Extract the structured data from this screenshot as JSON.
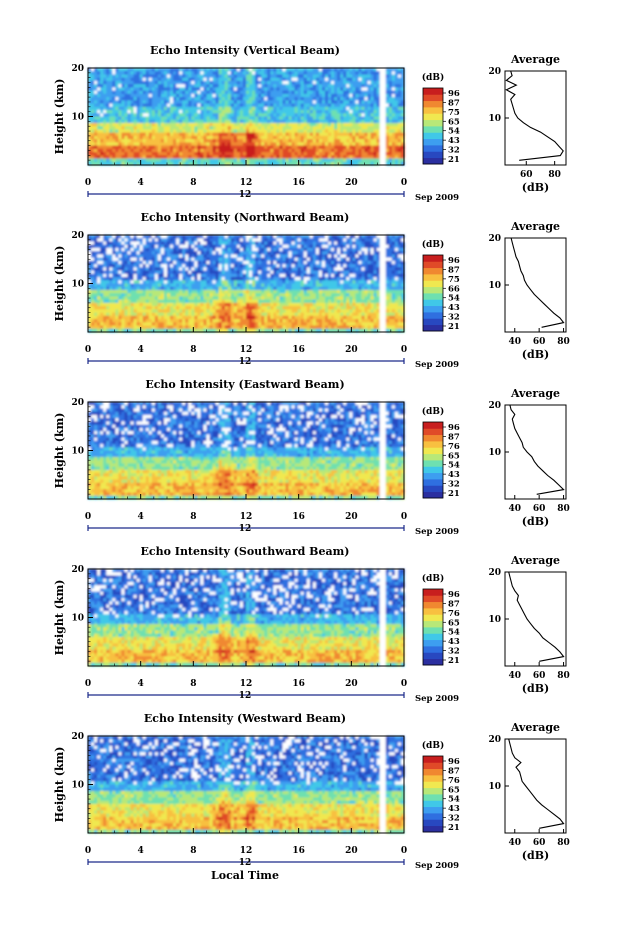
{
  "x_ticks": [
    "0",
    "4",
    "8",
    "12",
    "16",
    "20",
    "0"
  ],
  "y_ticks": [
    "20",
    "10"
  ],
  "colorbar_unit": "(dB)",
  "date_label": "Sep 2009",
  "xlabel": "Local Time",
  "avg_title": "Average",
  "avg_xlabel": "(dB)",
  "ylabel": "Height (km)",
  "colors": [
    "#2b2fa0",
    "#2848c0",
    "#2f6fe0",
    "#3d9ef0",
    "#40c8e8",
    "#6ee0b0",
    "#b8e878",
    "#f0e850",
    "#f8c040",
    "#f08830",
    "#e04a28",
    "#c81e1e"
  ],
  "chart_data": [
    {
      "type": "heatmap",
      "title": "Echo Intensity (Vertical Beam)",
      "day_label": "12",
      "colorbar_ticks": [
        "96",
        "87",
        "75",
        "65",
        "54",
        "43",
        "32",
        "21"
      ],
      "avg_x_ticks": [
        "60",
        "80"
      ],
      "avg_profile": {
        "height_km": [
          1,
          2,
          3,
          4,
          5,
          6,
          7,
          8,
          9,
          10,
          11,
          12,
          13,
          14,
          15,
          16,
          17,
          18,
          19,
          20
        ],
        "db": [
          55,
          84,
          86,
          83,
          80,
          75,
          70,
          63,
          58,
          54,
          52,
          51,
          50,
          49,
          52,
          46,
          53,
          46,
          50,
          49
        ]
      }
    },
    {
      "type": "heatmap",
      "title": "Echo Intensity (Northward Beam)",
      "day_label": "12",
      "colorbar_ticks": [
        "96",
        "87",
        "75",
        "66",
        "54",
        "43",
        "32",
        "21"
      ],
      "avg_x_ticks": [
        "40",
        "60",
        "80"
      ],
      "avg_profile": {
        "height_km": [
          1,
          2,
          3,
          4,
          5,
          6,
          7,
          8,
          9,
          10,
          11,
          12,
          13,
          14,
          15,
          16,
          17,
          18,
          19,
          20
        ],
        "db": [
          62,
          80,
          77,
          72,
          68,
          64,
          60,
          56,
          53,
          50,
          48,
          47,
          45,
          44,
          43,
          41,
          40,
          39,
          38,
          37
        ]
      }
    },
    {
      "type": "heatmap",
      "title": "Echo Intensity (Eastward Beam)",
      "day_label": "12",
      "colorbar_ticks": [
        "96",
        "87",
        "76",
        "65",
        "54",
        "43",
        "32",
        "21"
      ],
      "avg_x_ticks": [
        "40",
        "60",
        "80"
      ],
      "avg_profile": {
        "height_km": [
          1,
          2,
          3,
          4,
          5,
          6,
          7,
          8,
          9,
          10,
          11,
          12,
          13,
          14,
          15,
          16,
          17,
          18,
          19,
          20
        ],
        "db": [
          58,
          80,
          76,
          72,
          67,
          63,
          59,
          56,
          54,
          50,
          47,
          46,
          44,
          42,
          40,
          39,
          38,
          40,
          37,
          36
        ]
      }
    },
    {
      "type": "heatmap",
      "title": "Echo Intensity (Southward Beam)",
      "day_label": "12",
      "colorbar_ticks": [
        "96",
        "87",
        "76",
        "65",
        "54",
        "43",
        "32",
        "21"
      ],
      "avg_x_ticks": [
        "40",
        "60",
        "80"
      ],
      "avg_profile": {
        "height_km": [
          1,
          2,
          3,
          4,
          5,
          6,
          7,
          8,
          9,
          10,
          11,
          12,
          13,
          14,
          15,
          16,
          17,
          18,
          19,
          20
        ],
        "db": [
          60,
          80,
          77,
          73,
          68,
          63,
          60,
          56,
          53,
          50,
          48,
          46,
          44,
          42,
          43,
          40,
          38,
          37,
          36,
          35
        ]
      }
    },
    {
      "type": "heatmap",
      "title": "Echo Intensity (Westward Beam)",
      "day_label": "12",
      "colorbar_ticks": [
        "96",
        "87",
        "76",
        "65",
        "54",
        "43",
        "32",
        "21"
      ],
      "avg_x_ticks": [
        "40",
        "60",
        "80"
      ],
      "avg_profile": {
        "height_km": [
          1,
          2,
          3,
          4,
          5,
          6,
          7,
          8,
          9,
          10,
          11,
          12,
          13,
          14,
          15,
          16,
          17,
          18,
          19,
          20
        ],
        "db": [
          60,
          80,
          77,
          72,
          67,
          62,
          58,
          55,
          52,
          49,
          46,
          45,
          44,
          41,
          45,
          40,
          38,
          37,
          36,
          35
        ]
      }
    }
  ]
}
